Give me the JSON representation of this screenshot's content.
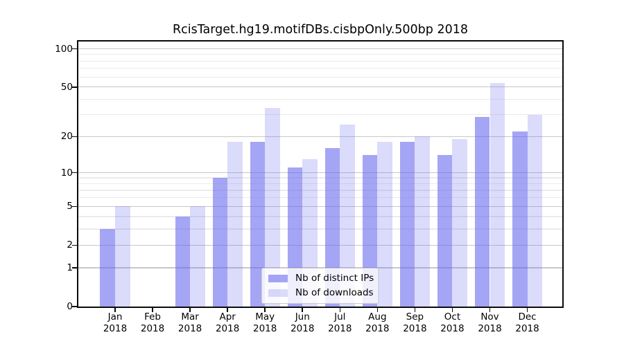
{
  "chart_data": {
    "type": "bar",
    "title": "RcisTarget.hg19.motifDBs.cisbpOnly.500bp 2018",
    "xlabel": "",
    "ylabel": "",
    "categories": [
      "Jan 2018",
      "Feb 2018",
      "Mar 2018",
      "Apr 2018",
      "May 2018",
      "Jun 2018",
      "Jul 2018",
      "Aug 2018",
      "Sep 2018",
      "Oct 2018",
      "Nov 2018",
      "Dec 2018"
    ],
    "series": [
      {
        "name": "Nb of distinct IPs",
        "color": "rgba(100,100,238,0.58)",
        "values": [
          3,
          0,
          4,
          9,
          18,
          11,
          16,
          14,
          18,
          14,
          29,
          22
        ]
      },
      {
        "name": "Nb of downloads",
        "color": "rgba(100,100,238,0.23)",
        "values": [
          5,
          0,
          5,
          18,
          34,
          13,
          25,
          18,
          20,
          19,
          54,
          30
        ]
      }
    ],
    "yscale": "log1p",
    "ylim": [
      0,
      113
    ],
    "y_major_ticks": [
      100,
      50,
      20,
      10,
      5,
      2,
      1,
      0
    ],
    "y_minor_gridlines": [
      3,
      4,
      6,
      7,
      8,
      9,
      30,
      40,
      60,
      70,
      80,
      90
    ],
    "grid": true,
    "legend_position": "lower center inside",
    "colors": {
      "grid_major": "#c7c7c7",
      "grid_minor": "#ebebeb",
      "axis": "#0a0a0a",
      "background": "#ffffff"
    }
  }
}
